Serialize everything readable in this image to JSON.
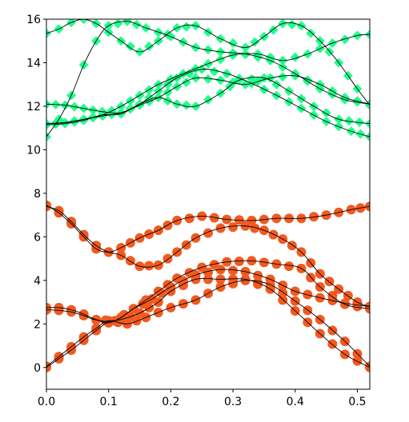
{
  "chart_data": {
    "type": "line",
    "title": "",
    "xlabel": "",
    "ylabel": "",
    "xlim": [
      0.0,
      0.52
    ],
    "ylim": [
      -1,
      16
    ],
    "x_ticks": [
      0.0,
      0.1,
      0.2,
      0.3,
      0.4,
      0.5
    ],
    "x_tick_labels": [
      "0.0",
      "0.1",
      "0.2",
      "0.3",
      "0.4",
      "0.5"
    ],
    "y_ticks": [
      0,
      2,
      4,
      6,
      8,
      10,
      12,
      14,
      16
    ],
    "y_tick_labels": [
      "0",
      "2",
      "4",
      "6",
      "8",
      "10",
      "12",
      "14",
      "16"
    ],
    "grid": false,
    "colors": {
      "low_markers": "#f25a1e",
      "high_markers": "#1eff8c",
      "line": "#000000",
      "axis": "#000000"
    },
    "lower_series": [
      {
        "marker": "circle",
        "points": [
          [
            0.0,
            0.0
          ],
          [
            0.02,
            0.4
          ],
          [
            0.04,
            0.8
          ],
          [
            0.06,
            1.25
          ],
          [
            0.08,
            1.7
          ],
          [
            0.1,
            2.1
          ],
          [
            0.12,
            2.2
          ],
          [
            0.15,
            2.5
          ],
          [
            0.18,
            3.0
          ],
          [
            0.2,
            3.5
          ],
          [
            0.24,
            4.05
          ],
          [
            0.28,
            4.05
          ],
          [
            0.32,
            4.05
          ],
          [
            0.36,
            3.6
          ],
          [
            0.4,
            2.6
          ],
          [
            0.44,
            1.55
          ],
          [
            0.48,
            0.6
          ],
          [
            0.52,
            0.0
          ]
        ]
      },
      {
        "marker": "circle",
        "points": [
          [
            0.0,
            0.05
          ],
          [
            0.02,
            0.5
          ],
          [
            0.04,
            0.95
          ],
          [
            0.06,
            1.4
          ],
          [
            0.08,
            1.8
          ],
          [
            0.1,
            2.15
          ],
          [
            0.13,
            2.0
          ],
          [
            0.16,
            2.3
          ],
          [
            0.2,
            2.75
          ],
          [
            0.24,
            3.1
          ],
          [
            0.28,
            3.7
          ],
          [
            0.32,
            4.0
          ],
          [
            0.36,
            3.8
          ],
          [
            0.4,
            3.05
          ],
          [
            0.44,
            2.2
          ],
          [
            0.48,
            1.2
          ],
          [
            0.52,
            0.05
          ]
        ]
      },
      {
        "marker": "circle",
        "points": [
          [
            0.0,
            2.75
          ],
          [
            0.02,
            2.75
          ],
          [
            0.04,
            2.65
          ],
          [
            0.06,
            2.45
          ],
          [
            0.08,
            2.2
          ],
          [
            0.1,
            2.05
          ],
          [
            0.12,
            2.3
          ],
          [
            0.14,
            2.7
          ],
          [
            0.17,
            3.15
          ],
          [
            0.2,
            3.7
          ],
          [
            0.24,
            4.25
          ],
          [
            0.28,
            4.5
          ],
          [
            0.32,
            4.4
          ],
          [
            0.36,
            4.05
          ],
          [
            0.4,
            3.5
          ],
          [
            0.44,
            3.2
          ],
          [
            0.48,
            2.95
          ],
          [
            0.52,
            2.8
          ]
        ]
      },
      {
        "marker": "circle",
        "points": [
          [
            0.0,
            2.65
          ],
          [
            0.02,
            2.62
          ],
          [
            0.04,
            2.55
          ],
          [
            0.06,
            2.38
          ],
          [
            0.08,
            2.18
          ],
          [
            0.11,
            2.15
          ],
          [
            0.14,
            2.7
          ],
          [
            0.18,
            3.5
          ],
          [
            0.21,
            4.1
          ],
          [
            0.25,
            4.6
          ],
          [
            0.29,
            4.85
          ],
          [
            0.33,
            4.9
          ],
          [
            0.37,
            4.75
          ],
          [
            0.41,
            4.55
          ],
          [
            0.44,
            3.7
          ],
          [
            0.48,
            2.9
          ],
          [
            0.52,
            2.7
          ]
        ]
      },
      {
        "marker": "circle",
        "points": [
          [
            0.0,
            7.4
          ],
          [
            0.02,
            7.2
          ],
          [
            0.04,
            6.7
          ],
          [
            0.06,
            6.1
          ],
          [
            0.08,
            5.6
          ],
          [
            0.1,
            5.3
          ],
          [
            0.12,
            5.15
          ],
          [
            0.15,
            4.65
          ],
          [
            0.18,
            4.7
          ],
          [
            0.21,
            5.3
          ],
          [
            0.24,
            5.95
          ],
          [
            0.28,
            6.4
          ],
          [
            0.32,
            6.5
          ],
          [
            0.35,
            6.3
          ],
          [
            0.38,
            5.9
          ],
          [
            0.41,
            5.3
          ],
          [
            0.44,
            4.3
          ],
          [
            0.47,
            3.6
          ],
          [
            0.5,
            3.0
          ],
          [
            0.52,
            2.8
          ]
        ]
      },
      {
        "marker": "circle",
        "points": [
          [
            0.0,
            7.45
          ],
          [
            0.02,
            7.1
          ],
          [
            0.04,
            6.6
          ],
          [
            0.06,
            6.0
          ],
          [
            0.08,
            5.45
          ],
          [
            0.1,
            5.3
          ],
          [
            0.12,
            5.5
          ],
          [
            0.15,
            5.95
          ],
          [
            0.18,
            6.3
          ],
          [
            0.21,
            6.75
          ],
          [
            0.25,
            6.95
          ],
          [
            0.29,
            6.8
          ],
          [
            0.33,
            6.75
          ],
          [
            0.37,
            6.85
          ],
          [
            0.41,
            6.85
          ],
          [
            0.45,
            7.0
          ],
          [
            0.49,
            7.25
          ],
          [
            0.52,
            7.4
          ]
        ]
      }
    ],
    "upper_series": [
      {
        "marker": "diamond",
        "points": [
          [
            0.0,
            10.6
          ],
          [
            0.02,
            11.4
          ],
          [
            0.04,
            12.5
          ],
          [
            0.06,
            13.9
          ],
          [
            0.08,
            15.0
          ],
          [
            0.1,
            15.7
          ],
          [
            0.13,
            15.9
          ],
          [
            0.16,
            15.6
          ],
          [
            0.2,
            15.2
          ],
          [
            0.24,
            14.7
          ],
          [
            0.28,
            14.5
          ],
          [
            0.32,
            14.4
          ],
          [
            0.36,
            14.1
          ],
          [
            0.4,
            13.5
          ],
          [
            0.44,
            12.8
          ],
          [
            0.48,
            12.3
          ],
          [
            0.52,
            12.1
          ]
        ]
      },
      {
        "marker": "diamond",
        "points": [
          [
            0.0,
            15.35
          ],
          [
            0.02,
            15.55
          ],
          [
            0.04,
            15.85
          ],
          [
            0.06,
            16.0
          ],
          [
            0.08,
            15.8
          ],
          [
            0.1,
            15.4
          ],
          [
            0.12,
            15.0
          ],
          [
            0.15,
            14.5
          ],
          [
            0.18,
            15.0
          ],
          [
            0.21,
            15.6
          ],
          [
            0.24,
            15.7
          ],
          [
            0.28,
            15.1
          ],
          [
            0.32,
            14.7
          ],
          [
            0.35,
            15.2
          ],
          [
            0.38,
            15.8
          ],
          [
            0.41,
            15.7
          ],
          [
            0.44,
            15.0
          ],
          [
            0.47,
            14.0
          ],
          [
            0.5,
            12.8
          ],
          [
            0.52,
            12.05
          ]
        ]
      },
      {
        "marker": "diamond",
        "points": [
          [
            0.0,
            12.1
          ],
          [
            0.03,
            12.05
          ],
          [
            0.06,
            11.9
          ],
          [
            0.09,
            11.75
          ],
          [
            0.12,
            11.7
          ],
          [
            0.15,
            12.05
          ],
          [
            0.18,
            12.4
          ],
          [
            0.21,
            12.9
          ],
          [
            0.24,
            13.3
          ],
          [
            0.28,
            13.2
          ],
          [
            0.32,
            13.0
          ],
          [
            0.36,
            13.3
          ],
          [
            0.4,
            13.4
          ],
          [
            0.44,
            13.0
          ],
          [
            0.48,
            12.4
          ],
          [
            0.52,
            12.1
          ]
        ]
      },
      {
        "marker": "diamond",
        "points": [
          [
            0.0,
            11.15
          ],
          [
            0.03,
            11.2
          ],
          [
            0.06,
            11.35
          ],
          [
            0.09,
            11.6
          ],
          [
            0.12,
            11.65
          ],
          [
            0.15,
            12.1
          ],
          [
            0.18,
            12.4
          ],
          [
            0.21,
            12.1
          ],
          [
            0.24,
            12.0
          ],
          [
            0.28,
            12.6
          ],
          [
            0.31,
            13.2
          ],
          [
            0.35,
            13.3
          ],
          [
            0.39,
            12.7
          ],
          [
            0.43,
            12.0
          ],
          [
            0.47,
            11.4
          ],
          [
            0.52,
            11.2
          ]
        ]
      },
      {
        "marker": "diamond",
        "points": [
          [
            0.0,
            11.2
          ],
          [
            0.03,
            11.25
          ],
          [
            0.06,
            11.4
          ],
          [
            0.09,
            11.55
          ],
          [
            0.12,
            11.7
          ],
          [
            0.15,
            12.1
          ],
          [
            0.18,
            12.7
          ],
          [
            0.21,
            13.3
          ],
          [
            0.25,
            13.7
          ],
          [
            0.29,
            13.5
          ],
          [
            0.33,
            13.05
          ],
          [
            0.37,
            12.5
          ],
          [
            0.41,
            11.9
          ],
          [
            0.45,
            11.3
          ],
          [
            0.49,
            10.85
          ],
          [
            0.52,
            10.6
          ]
        ]
      },
      {
        "marker": "diamond",
        "points": [
          [
            0.0,
            11.2
          ],
          [
            0.03,
            11.25
          ],
          [
            0.06,
            11.4
          ],
          [
            0.09,
            11.6
          ],
          [
            0.12,
            12.0
          ],
          [
            0.15,
            12.5
          ],
          [
            0.18,
            13.0
          ],
          [
            0.22,
            13.5
          ],
          [
            0.26,
            13.95
          ],
          [
            0.3,
            14.35
          ],
          [
            0.34,
            14.4
          ],
          [
            0.38,
            14.1
          ],
          [
            0.42,
            14.4
          ],
          [
            0.46,
            14.9
          ],
          [
            0.5,
            15.25
          ],
          [
            0.52,
            15.3
          ]
        ]
      }
    ]
  }
}
